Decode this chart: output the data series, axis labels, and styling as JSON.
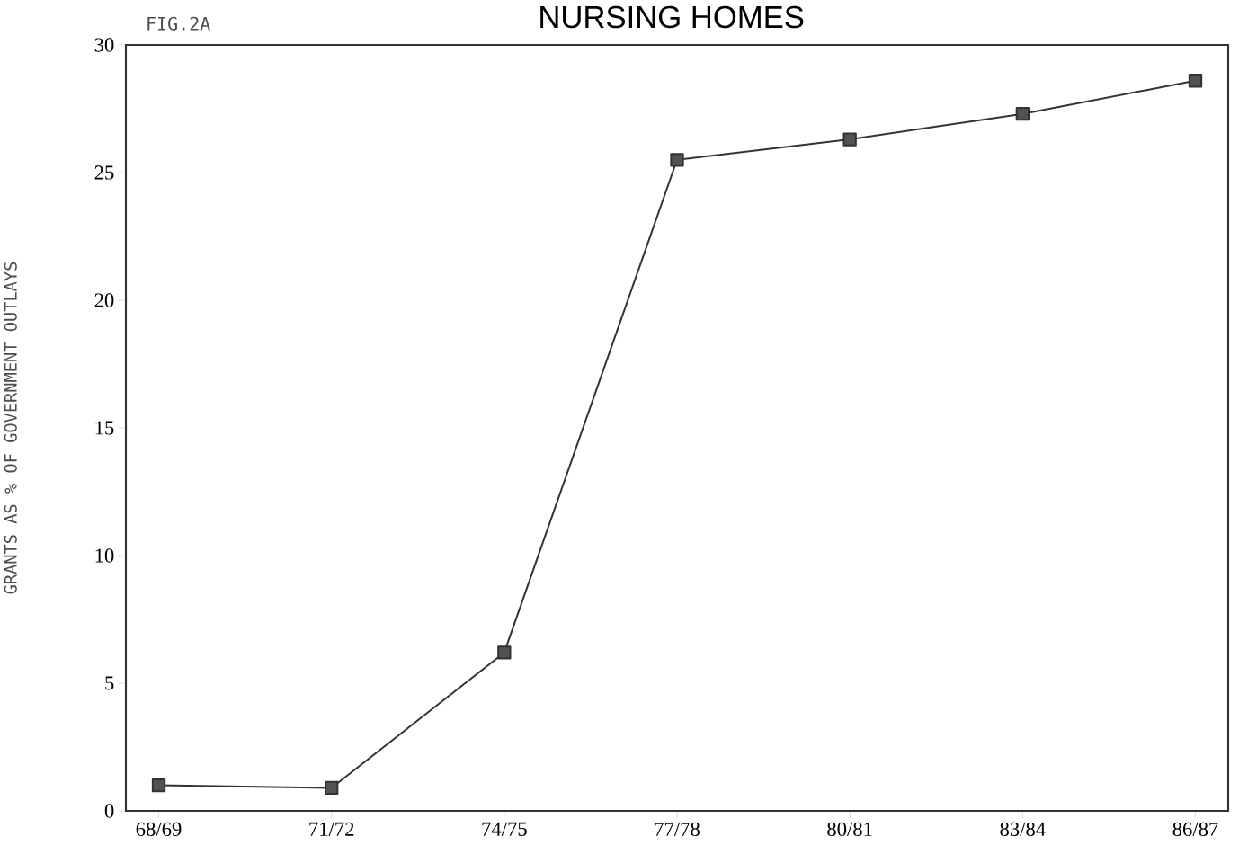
{
  "chart_data": {
    "type": "line",
    "title": "NURSING HOMES",
    "ylabel": "GRANTS AS % OF GOVERNMENT OUTLAYS",
    "annotations": [
      "FIG.2A"
    ],
    "categories": [
      "68/69",
      "71/72",
      "74/75",
      "77/78",
      "80/81",
      "83/84",
      "86/87"
    ],
    "series": [
      {
        "color": "#333333",
        "values": [
          1.0,
          0.9,
          6.2,
          25.5,
          26.3,
          27.3,
          28.6
        ]
      }
    ],
    "ylim": [
      0,
      30
    ],
    "yticks": [
      0,
      5,
      10,
      15,
      20,
      25,
      30
    ],
    "marker": "square",
    "line_style": "solid",
    "grid": false
  }
}
